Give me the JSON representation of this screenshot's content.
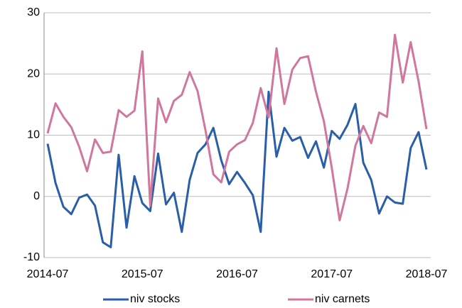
{
  "chart_data": {
    "type": "line",
    "categories": [
      "2014-07",
      null,
      null,
      null,
      null,
      null,
      null,
      null,
      null,
      null,
      null,
      null,
      "2015-07",
      null,
      null,
      null,
      null,
      null,
      null,
      null,
      null,
      null,
      null,
      null,
      "2016-07",
      null,
      null,
      null,
      null,
      null,
      null,
      null,
      null,
      null,
      null,
      null,
      "2017-07",
      null,
      null,
      null,
      null,
      null,
      null,
      null,
      null,
      null,
      null,
      null,
      "2018-07"
    ],
    "series": [
      {
        "name": "niv stocks",
        "color": "#2a5ea8",
        "values": [
          8.6,
          2.2,
          -1.7,
          -2.9,
          -0.2,
          0.3,
          -1.5,
          -7.5,
          -8.3,
          6.8,
          -5.1,
          3.3,
          -1.1,
          -2.4,
          7.0,
          -1.3,
          0.6,
          -5.8,
          2.7,
          7.1,
          8.5,
          11.2,
          5.9,
          2.0,
          4.0,
          2.2,
          0.2,
          -5.8,
          17.1,
          6.5,
          11.2,
          9.1,
          9.7,
          6.3,
          9.0,
          4.7,
          10.7,
          9.4,
          11.7,
          15.1,
          5.5,
          2.7,
          -2.8,
          0,
          -1.0,
          -1.2,
          7.9,
          10.5,
          4.4
        ]
      },
      {
        "name": "niv carnets",
        "color": "#d0779e",
        "values": [
          10.3,
          15.2,
          13.0,
          11.3,
          8.1,
          4.1,
          9.3,
          7.1,
          7.3,
          14.1,
          13.0,
          14.0,
          23.7,
          -1.5,
          16.0,
          12.1,
          15.6,
          16.6,
          20.3,
          17.2,
          10.8,
          3.6,
          2.3,
          7.3,
          8.5,
          9.2,
          12.0,
          17.7,
          12.9,
          24.2,
          15.1,
          20.7,
          22.6,
          22.9,
          17.1,
          12.3,
          4.7,
          -3.9,
          1.3,
          8.3,
          11.5,
          8.7,
          13.7,
          13.0,
          26.4,
          18.6,
          25.2,
          18.8,
          11.0
        ]
      }
    ],
    "ylim": [
      -10,
      30
    ],
    "yticks": [
      -10,
      0,
      10,
      20,
      30
    ],
    "grid": true,
    "legend": "bottom"
  }
}
